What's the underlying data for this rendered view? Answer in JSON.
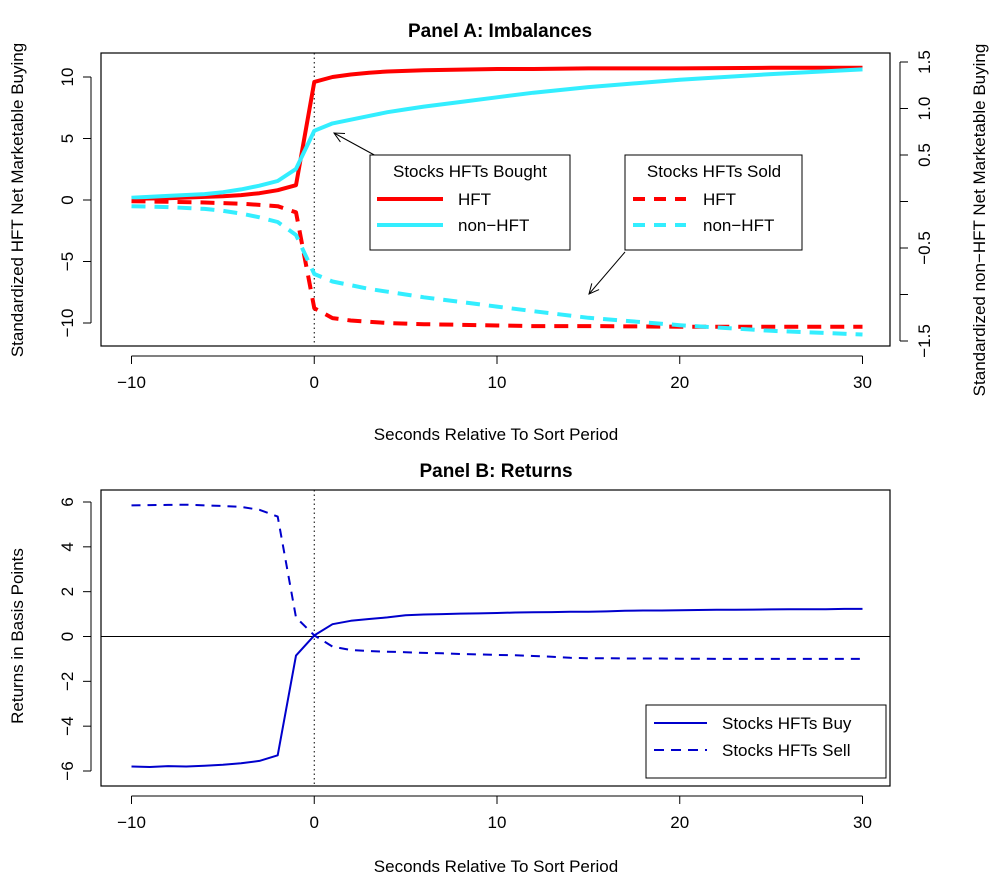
{
  "chart_data": [
    {
      "type": "line",
      "title": "Panel A: Imbalances",
      "xlabel": "Seconds Relative To Sort Period",
      "ylabel": "Standardized HFT Net Marketable Buying",
      "ylabel_right": "Standardized non−HFT Net Marketable Buying",
      "xlim": [
        -10,
        30
      ],
      "ylim": [
        -11.5,
        11.5
      ],
      "ylim_right": [
        -1.55,
        1.55
      ],
      "x_ticks": [
        -10,
        0,
        10,
        20,
        30
      ],
      "x_tick_labels": [
        "−10",
        "0",
        "10",
        "20",
        "30"
      ],
      "y_ticks": [
        -10,
        -5,
        0,
        5,
        10
      ],
      "y_tick_labels": [
        "−10",
        "−5",
        "0",
        "5",
        "10"
      ],
      "y_right_ticks": [
        -1.5,
        -1.0,
        -0.5,
        0.0,
        0.5,
        1.0,
        1.5
      ],
      "y_right_tick_labels": [
        "−1.5",
        "",
        "−0.5",
        "",
        "0.5",
        "1.0",
        "1.5"
      ],
      "vline": 0,
      "grid": false,
      "x": [
        -10,
        -8,
        -6,
        -5,
        -4,
        -3,
        -2,
        -1,
        0,
        1,
        2,
        3,
        4,
        5,
        6,
        8,
        10,
        12,
        15,
        20,
        25,
        30
      ],
      "series": [
        {
          "name": "HFT",
          "group": "Stocks HFTs Bought",
          "axis": "left",
          "color": "#ff0000",
          "dash": "solid",
          "values": [
            0.1,
            0.15,
            0.25,
            0.3,
            0.4,
            0.55,
            0.8,
            1.2,
            9.6,
            10.0,
            10.2,
            10.35,
            10.45,
            10.5,
            10.55,
            10.6,
            10.65,
            10.65,
            10.7,
            10.7,
            10.75,
            10.75
          ]
        },
        {
          "name": "non−HFT",
          "group": "Stocks HFTs Bought",
          "axis": "right",
          "color": "#33eeff",
          "dash": "solid",
          "values": [
            0.04,
            0.06,
            0.08,
            0.1,
            0.13,
            0.17,
            0.22,
            0.35,
            0.76,
            0.84,
            0.88,
            0.92,
            0.96,
            0.99,
            1.02,
            1.07,
            1.12,
            1.17,
            1.23,
            1.31,
            1.37,
            1.42
          ]
        },
        {
          "name": "HFT",
          "group": "Stocks HFTs Sold",
          "axis": "left",
          "color": "#ff0000",
          "dash": "dashed",
          "values": [
            -0.1,
            -0.15,
            -0.2,
            -0.25,
            -0.3,
            -0.4,
            -0.5,
            -1.0,
            -8.8,
            -9.6,
            -9.8,
            -9.9,
            -10.0,
            -10.05,
            -10.1,
            -10.15,
            -10.2,
            -10.25,
            -10.25,
            -10.3,
            -10.3,
            -10.3
          ]
        },
        {
          "name": "non−HFT",
          "group": "Stocks HFTs Sold",
          "axis": "right",
          "color": "#33eeff",
          "dash": "dashed",
          "values": [
            -0.05,
            -0.06,
            -0.08,
            -0.1,
            -0.13,
            -0.17,
            -0.22,
            -0.36,
            -0.78,
            -0.86,
            -0.9,
            -0.94,
            -0.97,
            -1.0,
            -1.03,
            -1.08,
            -1.13,
            -1.18,
            -1.25,
            -1.33,
            -1.39,
            -1.43
          ]
        }
      ],
      "legends": [
        {
          "title": "Stocks HFTs Bought",
          "items": [
            "HFT",
            "non−HFT"
          ]
        },
        {
          "title": "Stocks HFTs Sold",
          "items": [
            "HFT",
            "non−HFT"
          ]
        }
      ]
    },
    {
      "type": "line",
      "title": "Panel B: Returns",
      "xlabel": "Seconds Relative To Sort Period",
      "ylabel": "Returns in Basis Points",
      "xlim": [
        -10,
        30
      ],
      "ylim": [
        -6.4,
        6.4
      ],
      "x_ticks": [
        -10,
        0,
        10,
        20,
        30
      ],
      "x_tick_labels": [
        "−10",
        "0",
        "10",
        "20",
        "30"
      ],
      "y_ticks": [
        -6,
        -4,
        -2,
        0,
        2,
        4,
        6
      ],
      "y_tick_labels": [
        "−6",
        "−4",
        "−2",
        "0",
        "2",
        "4",
        "6"
      ],
      "hline": 0,
      "vline": 0,
      "grid": false,
      "legend_position": "bottom-right",
      "x": [
        -10,
        -9,
        -8,
        -7,
        -6,
        -5,
        -4,
        -3,
        -2,
        -1,
        0,
        1,
        2,
        3,
        4,
        5,
        6,
        7,
        8,
        9,
        10,
        11,
        12,
        13,
        14,
        15,
        16,
        17,
        18,
        19,
        20,
        21,
        22,
        23,
        24,
        25,
        26,
        27,
        28,
        29,
        30
      ],
      "series": [
        {
          "name": "Stocks HFTs Buy",
          "color": "#0000cc",
          "dash": "solid",
          "values": [
            -5.8,
            -5.82,
            -5.78,
            -5.8,
            -5.77,
            -5.72,
            -5.65,
            -5.55,
            -5.3,
            -0.85,
            0.05,
            0.55,
            0.7,
            0.78,
            0.85,
            0.95,
            0.98,
            1.0,
            1.02,
            1.03,
            1.05,
            1.07,
            1.08,
            1.09,
            1.1,
            1.1,
            1.12,
            1.15,
            1.16,
            1.16,
            1.17,
            1.18,
            1.19,
            1.19,
            1.2,
            1.21,
            1.22,
            1.22,
            1.22,
            1.23,
            1.23
          ]
        },
        {
          "name": "Stocks HFTs Sell",
          "color": "#0000cc",
          "dash": "dashed",
          "values": [
            5.85,
            5.86,
            5.87,
            5.88,
            5.85,
            5.82,
            5.78,
            5.65,
            5.35,
            0.85,
            0.05,
            -0.45,
            -0.6,
            -0.65,
            -0.68,
            -0.7,
            -0.73,
            -0.75,
            -0.78,
            -0.8,
            -0.82,
            -0.84,
            -0.87,
            -0.9,
            -0.95,
            -0.97,
            -0.97,
            -0.98,
            -0.98,
            -0.98,
            -0.99,
            -0.99,
            -1.0,
            -1.0,
            -1.0,
            -1.0,
            -1.0,
            -1.0,
            -1.0,
            -1.0,
            -1.0
          ]
        }
      ],
      "legends": [
        {
          "title": "",
          "items": [
            "Stocks HFTs Buy",
            "Stocks HFTs Sell"
          ]
        }
      ]
    }
  ]
}
